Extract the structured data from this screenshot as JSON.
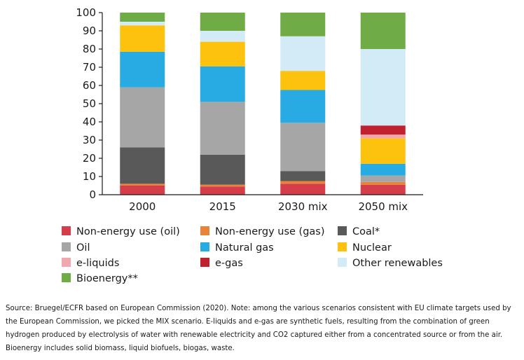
{
  "chart_data": {
    "type": "bar",
    "stacked": true,
    "categories": [
      "2000",
      "2015",
      "2030 mix",
      "2050 mix"
    ],
    "ylim": [
      0,
      100
    ],
    "yticks": [
      0,
      10,
      20,
      30,
      40,
      50,
      60,
      70,
      80,
      90,
      100
    ],
    "grid": false,
    "legend_position": "bottom",
    "series": [
      {
        "name": "Non-energy use (oil)",
        "color": "#d63d4a",
        "values": [
          5,
          4.5,
          6,
          5.5
        ]
      },
      {
        "name": "Non-energy use (gas)",
        "color": "#e8843a",
        "values": [
          1,
          1,
          1.5,
          1.5
        ]
      },
      {
        "name": "Coal*",
        "color": "#595959",
        "values": [
          20,
          16.5,
          5.5,
          0
        ]
      },
      {
        "name": "Oil",
        "color": "#a6a6a6",
        "values": [
          33,
          29,
          26.5,
          3.5
        ]
      },
      {
        "name": "Natural gas",
        "color": "#27abe2",
        "values": [
          19.5,
          19.5,
          18,
          6.5
        ]
      },
      {
        "name": "Nuclear",
        "color": "#fdc20e",
        "values": [
          14.5,
          13.5,
          10.5,
          14
        ]
      },
      {
        "name": "e-liquids",
        "color": "#f0a7ad",
        "values": [
          0,
          0,
          0,
          2
        ]
      },
      {
        "name": "e-gas",
        "color": "#c0212e",
        "values": [
          0,
          0,
          0,
          5
        ]
      },
      {
        "name": "Other renewables",
        "color": "#d3ebf6",
        "values": [
          2,
          6,
          19,
          42
        ]
      },
      {
        "name": "Bioenergy**",
        "color": "#6fac46",
        "values": [
          5,
          10,
          13,
          20
        ]
      }
    ],
    "legend_order": [
      "Non-energy use (oil)",
      "Non-energy use (gas)",
      "Coal*",
      "Oil",
      "Natural gas",
      "Nuclear",
      "e-liquids",
      "e-gas",
      "Other renewables",
      "Bioenergy**"
    ]
  },
  "note": "Source: Bruegel/ECFR based on European Commission (2020). Note: among the various scenarios consistent with EU climate targets used by the European Commission, we picked the MIX scenario. E-liquids and e-gas are synthetic fuels, resulting from the combination of green hydrogen produced by electrolysis of water with renewable electricity and CO2 captured either from a concentrated source or from the air. Bioenergy includes solid biomass, liquid biofuels, biogas, waste."
}
